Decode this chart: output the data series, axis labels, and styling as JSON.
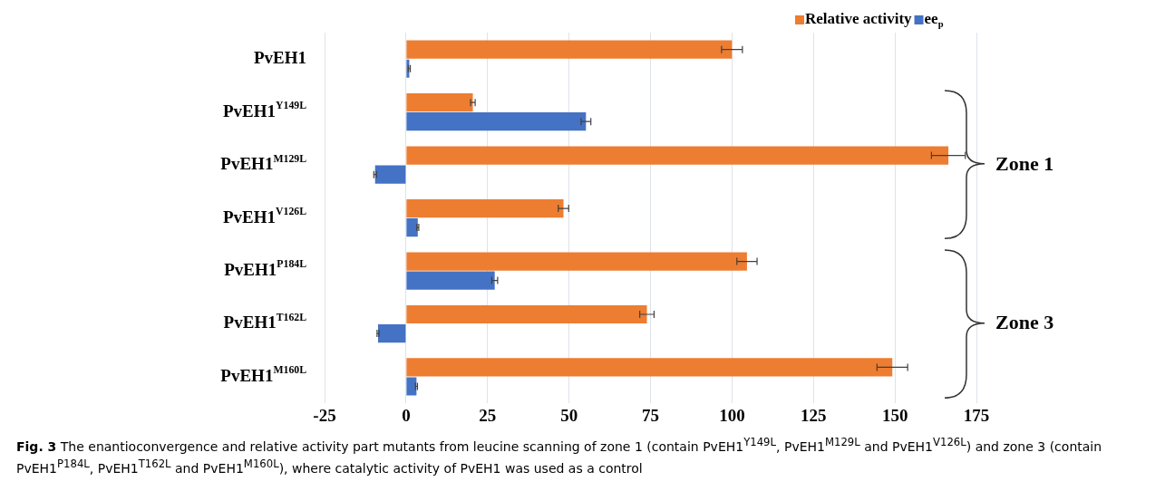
{
  "chart_data": {
    "type": "bar",
    "orientation": "horizontal",
    "categories": [
      "PvEH1",
      "PvEH1$^{Y149L}$",
      "PvEH1$^{M129L}$",
      "PvEH1$^{V126L}$",
      "PvEH1$^{P184L}$",
      "PvEH1$^{T162L}$",
      "PvEH1$^{M160L}$"
    ],
    "series": [
      {
        "name": "Relative activity",
        "color": "#ed7d31",
        "values": [
          100,
          20.5,
          166.4,
          48.3,
          104.6,
          73.9,
          149.2
        ],
        "errors": [
          3.2,
          0.7,
          5.2,
          1.6,
          3.1,
          2.2,
          4.7
        ]
      },
      {
        "name": "ee$_{p}$",
        "color": "#4472c4",
        "values": [
          1.0,
          55.2,
          -9.5,
          3.6,
          27.2,
          -8.6,
          3.2
        ],
        "errors": [
          0.3,
          1.5,
          0.4,
          0.3,
          0.9,
          0.3,
          0.3
        ]
      }
    ],
    "xlim": [
      -25,
      175
    ],
    "xticks": [
      -25,
      0,
      25,
      50,
      75,
      100,
      125,
      150,
      175
    ],
    "grid": "x",
    "legend": "top right",
    "annotations": [
      "Zone 1",
      "Zone 3",
      "Fig. 3",
      "The enantioconvergence and relative activity part mutants from leucine scanning of zone 1 (contain PvEH1$^{Y149L}$, PvEH1$^{M129L}$ and PvEH1$^{V126L}$) and zone 3 (contain PvEH1$^{P184L}$, PvEH1$^{T162L}$ and PvEH1$^{M160L}$), where catalytic activity of PvEH1 was used as a control"
    ]
  }
}
